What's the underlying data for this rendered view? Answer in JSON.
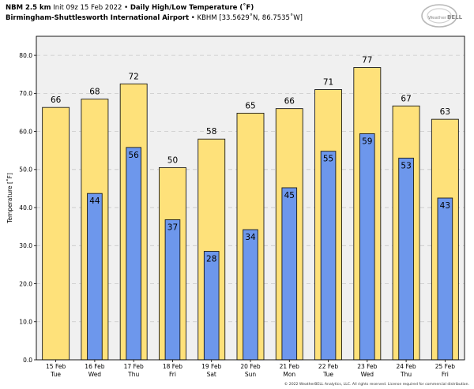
{
  "header": {
    "model": "NBM 2.5 km",
    "init": "Init 09z 15 Feb 2022",
    "separator": "•",
    "product": "Daily High/Low Temperature (˚F)",
    "station": "Birmingham-Shuttlesworth International Airport",
    "station_id": "KBHM [33.5629˚N, 86.7535˚W]"
  },
  "logo": {
    "text_small": "Weather",
    "text_large": "BELL"
  },
  "footer": "© 2022 WeatherBELL Analytics, LLC. All rights reserved. License required for commercial distribution.",
  "colors": {
    "high": "#fee17a",
    "low": "#6d97ec",
    "edge": "#1a1a1a",
    "grid": "#c8c8c8",
    "plot_bg": "#f0f0f0"
  },
  "chart_data": {
    "type": "bar",
    "ylabel": "Temperature [˚F]",
    "ylim": [
      0,
      85
    ],
    "yticks": [
      "0.0",
      "10.0",
      "20.0",
      "30.0",
      "40.0",
      "50.0",
      "60.0",
      "70.0",
      "80.0"
    ],
    "categories": [
      "15 Feb",
      "16 Feb",
      "17 Feb",
      "18 Feb",
      "19 Feb",
      "20 Feb",
      "21 Feb",
      "22 Feb",
      "23 Feb",
      "24 Feb",
      "25 Feb"
    ],
    "weekdays": [
      "Tue",
      "Wed",
      "Thu",
      "Fri",
      "Sat",
      "Sun",
      "Mon",
      "Tue",
      "Wed",
      "Thu",
      "Fri"
    ],
    "series": [
      {
        "values": [
          66.3,
          68.5,
          72.5,
          50.5,
          58.0,
          64.8,
          66.0,
          71.0,
          76.8,
          66.7,
          63.2
        ],
        "labels": [
          "66",
          "68",
          "72",
          "50",
          "58",
          "65",
          "66",
          "71",
          "77",
          "67",
          "63"
        ]
      },
      {
        "values": [
          null,
          43.7,
          55.8,
          36.8,
          28.5,
          34.2,
          45.2,
          54.8,
          59.4,
          53.0,
          42.5
        ],
        "labels": [
          "",
          "44",
          "56",
          "37",
          "28",
          "34",
          "45",
          "55",
          "59",
          "53",
          "43"
        ]
      }
    ]
  }
}
